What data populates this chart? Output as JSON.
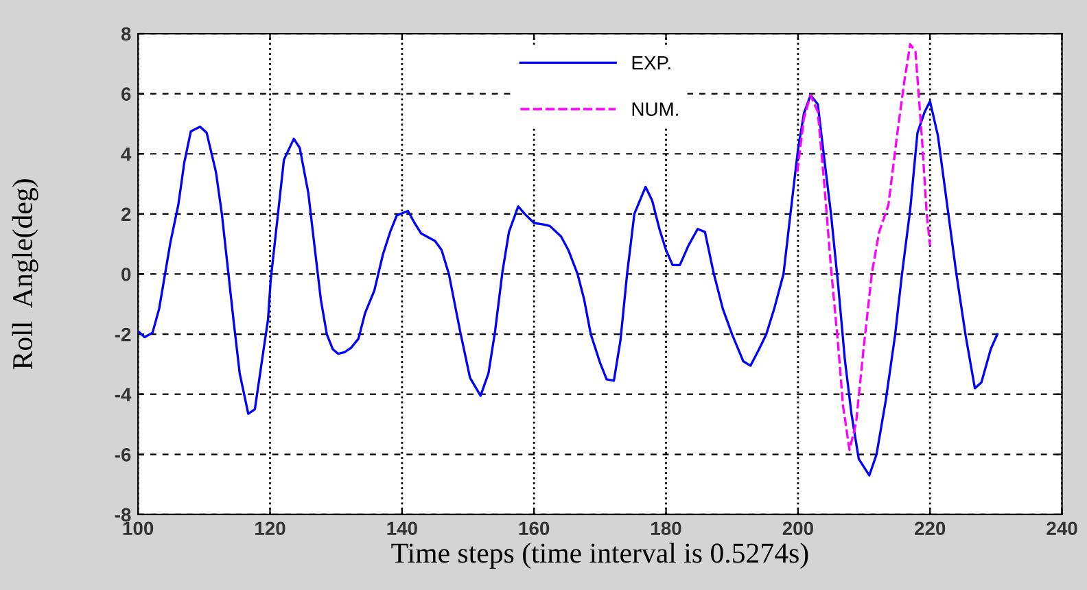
{
  "chart_data": {
    "type": "line",
    "xlabel": "Time steps (time interval is 0.5274s)",
    "ylabel": "Roll  Angle(deg)",
    "xlim": [
      100,
      240
    ],
    "ylim": [
      -8,
      8
    ],
    "xticks": [
      100,
      120,
      140,
      160,
      180,
      200,
      220,
      240
    ],
    "yticks": [
      -8,
      -6,
      -4,
      -2,
      0,
      2,
      4,
      6,
      8
    ],
    "grid": true,
    "legend": "top",
    "marker": "none",
    "series": [
      {
        "name": "EXP.",
        "color": "#0000ff",
        "line_style": "solid",
        "x": [
          100.0,
          101.0,
          102.2,
          103.2,
          104.9,
          106.1,
          107.0,
          108.0,
          109.4,
          110.4,
          111.8,
          112.7,
          113.7,
          114.5,
          115.4,
          116.7,
          117.7,
          118.6,
          119.7,
          120.1,
          121.2,
          122.1,
          123.6,
          124.5,
          125.8,
          126.7,
          127.7,
          128.6,
          129.5,
          130.3,
          131.3,
          132.3,
          133.4,
          134.4,
          135.8,
          137.1,
          138.2,
          139.2,
          140.9,
          141.9,
          142.9,
          145.0,
          146.0,
          147.1,
          148.8,
          150.3,
          151.9,
          153.1,
          154.1,
          155.2,
          156.2,
          157.6,
          158.6,
          160.0,
          161.4,
          162.4,
          164.1,
          165.2,
          166.6,
          167.6,
          168.6,
          170.0,
          171.0,
          172.1,
          173.1,
          174.1,
          175.2,
          176.9,
          177.9,
          179.0,
          180.0,
          181.0,
          182.1,
          183.4,
          184.8,
          185.9,
          187.2,
          188.6,
          190.0,
          191.7,
          192.8,
          194.1,
          195.2,
          196.4,
          197.8,
          198.8,
          200.0,
          200.9,
          201.9,
          203.0,
          204.0,
          205.0,
          206.1,
          207.1,
          208.1,
          209.2,
          210.8,
          211.9,
          213.3,
          214.7,
          215.7,
          217.0,
          218.1,
          219.2,
          220.0,
          221.2,
          222.6,
          224.0,
          225.4,
          226.8,
          227.8,
          229.2,
          230.2
        ],
        "values": [
          -1.9,
          -2.1,
          -1.95,
          -1.15,
          1.05,
          2.3,
          3.7,
          4.75,
          4.9,
          4.7,
          3.4,
          2.0,
          0,
          -1.6,
          -3.3,
          -4.65,
          -4.5,
          -3.15,
          -1.5,
          -0.2,
          2.0,
          3.8,
          4.5,
          4.2,
          2.7,
          1.0,
          -0.85,
          -2.0,
          -2.5,
          -2.65,
          -2.6,
          -2.45,
          -2.15,
          -1.3,
          -0.55,
          0.65,
          1.4,
          1.95,
          2.1,
          1.7,
          1.35,
          1.1,
          0.8,
          0,
          -1.9,
          -3.45,
          -4.05,
          -3.3,
          -1.9,
          0.05,
          1.4,
          2.25,
          2.0,
          1.7,
          1.65,
          1.6,
          1.25,
          0.8,
          0,
          -0.85,
          -2.0,
          -2.95,
          -3.5,
          -3.55,
          -2.2,
          0,
          2.0,
          2.9,
          2.45,
          1.5,
          0.8,
          0.3,
          0.3,
          0.95,
          1.5,
          1.4,
          0.05,
          -1.15,
          -2.0,
          -2.9,
          -3.05,
          -2.5,
          -2.0,
          -1.15,
          0,
          1.9,
          4.15,
          5.35,
          5.95,
          5.65,
          3.8,
          2.0,
          -0.4,
          -2.85,
          -4.65,
          -6.15,
          -6.7,
          -6.0,
          -4.2,
          -2.05,
          -0.1,
          2.15,
          4.7,
          5.4,
          5.75,
          4.6,
          2.3,
          0,
          -2.05,
          -3.8,
          -3.6,
          -2.5,
          -2.0
        ]
      },
      {
        "name": "NUM.",
        "color": "#ff00ff",
        "line_style": "dashed",
        "x": [
          199.9,
          200.9,
          201.9,
          203.0,
          204.0,
          205.0,
          206.1,
          206.8,
          207.8,
          208.8,
          209.9,
          211.2,
          212.3,
          213.7,
          215.0,
          216.1,
          217.0,
          217.8,
          218.8,
          219.5,
          220.0
        ],
        "values": [
          3.4,
          5.2,
          5.95,
          5.4,
          2.95,
          0.2,
          -2.4,
          -4.35,
          -5.85,
          -4.95,
          -2.55,
          0.05,
          1.4,
          2.3,
          4.6,
          6.4,
          7.65,
          7.4,
          4.45,
          2.0,
          0.95
        ]
      }
    ]
  }
}
